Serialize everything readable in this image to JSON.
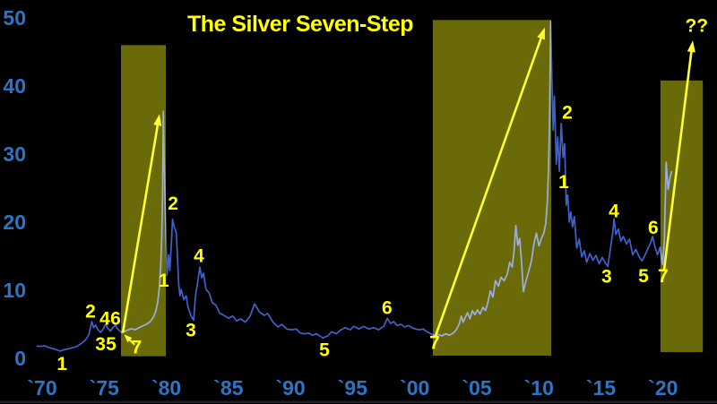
{
  "title": "The Silver Seven-Step",
  "future_label": "??",
  "colors": {
    "background": "#000000",
    "title": "#ffff00",
    "annotation": "#ffff00",
    "arrow": "#ffff2e",
    "axis_labels": "#2d74c4",
    "line": "#4260cc",
    "line_in_highlight": "#9fb0d2",
    "highlight": "#6a6a08",
    "bottom_border": "#20202a"
  },
  "chart_data": {
    "type": "line",
    "title": "The Silver Seven-Step",
    "xlabel": "",
    "ylabel": "",
    "grid": false,
    "legend": "none",
    "x_axis": {
      "range_years": [
        1969.3,
        2024.3
      ],
      "ticks": [
        {
          "label": "`70",
          "year": 1970
        },
        {
          "label": "`75",
          "year": 1975
        },
        {
          "label": "`80",
          "year": 1980
        },
        {
          "label": "`85",
          "year": 1985
        },
        {
          "label": "`90",
          "year": 1990
        },
        {
          "label": "`95",
          "year": 1995
        },
        {
          "label": "`00",
          "year": 2000
        },
        {
          "label": "`05",
          "year": 2005
        },
        {
          "label": "`10",
          "year": 2010
        },
        {
          "label": "`15",
          "year": 2015
        },
        {
          "label": "`20",
          "year": 2020
        }
      ]
    },
    "y_axis": {
      "range": [
        0,
        50
      ],
      "ticks": [
        {
          "label": "50",
          "value": 50
        },
        {
          "label": "40",
          "value": 40
        },
        {
          "label": "30",
          "value": 30
        },
        {
          "label": "20",
          "value": 20
        },
        {
          "label": "10",
          "value": 10
        },
        {
          "label": "0",
          "value": 0
        }
      ]
    },
    "series": [
      {
        "name": "silver-price-usd-per-oz",
        "points": [
          [
            1969.55,
            1.8
          ],
          [
            1969.9,
            1.75
          ],
          [
            1970.2,
            1.85
          ],
          [
            1970.5,
            1.6
          ],
          [
            1970.8,
            1.45
          ],
          [
            1971.1,
            1.3
          ],
          [
            1971.45,
            1.05
          ],
          [
            1971.75,
            1.25
          ],
          [
            1972.1,
            1.4
          ],
          [
            1972.45,
            1.55
          ],
          [
            1972.8,
            1.75
          ],
          [
            1973.1,
            2.1
          ],
          [
            1973.45,
            2.6
          ],
          [
            1973.75,
            3.4
          ],
          [
            1974.0,
            5.4
          ],
          [
            1974.15,
            4.5
          ],
          [
            1974.3,
            4.9
          ],
          [
            1974.5,
            4.2
          ],
          [
            1974.7,
            3.8
          ],
          [
            1974.95,
            4.4
          ],
          [
            1975.1,
            5.0
          ],
          [
            1975.3,
            4.4
          ],
          [
            1975.5,
            4.0
          ],
          [
            1975.7,
            4.5
          ],
          [
            1975.9,
            4.9
          ],
          [
            1976.05,
            4.4
          ],
          [
            1976.2,
            4.1
          ],
          [
            1976.45,
            3.75
          ],
          [
            1976.7,
            4.0
          ],
          [
            1976.95,
            4.2
          ],
          [
            1977.2,
            4.35
          ],
          [
            1977.5,
            4.2
          ],
          [
            1977.8,
            4.5
          ],
          [
            1978.1,
            4.75
          ],
          [
            1978.4,
            5.0
          ],
          [
            1978.7,
            5.4
          ],
          [
            1978.95,
            6.0
          ],
          [
            1979.15,
            6.9
          ],
          [
            1979.3,
            8.2
          ],
          [
            1979.45,
            10.5
          ],
          [
            1979.55,
            13.5
          ],
          [
            1979.63,
            17.5
          ],
          [
            1979.7,
            24
          ],
          [
            1979.76,
            36.3
          ],
          [
            1979.83,
            29
          ],
          [
            1979.9,
            23
          ],
          [
            1979.97,
            17.5
          ],
          [
            1980.05,
            12.2
          ],
          [
            1980.18,
            15.2
          ],
          [
            1980.28,
            12.9
          ],
          [
            1980.4,
            16.5
          ],
          [
            1980.5,
            20.4
          ],
          [
            1980.65,
            19.2
          ],
          [
            1980.8,
            18.4
          ],
          [
            1980.9,
            14.9
          ],
          [
            1981.0,
            10.9
          ],
          [
            1981.1,
            9.2
          ],
          [
            1981.2,
            10.1
          ],
          [
            1981.4,
            8.6
          ],
          [
            1981.6,
            9.2
          ],
          [
            1981.75,
            7.5
          ],
          [
            1982.0,
            6.2
          ],
          [
            1982.2,
            5.6
          ],
          [
            1982.35,
            9.2
          ],
          [
            1982.5,
            10.9
          ],
          [
            1982.7,
            13.4
          ],
          [
            1982.85,
            11.8
          ],
          [
            1983.0,
            12.5
          ],
          [
            1983.2,
            10.1
          ],
          [
            1983.45,
            9.6
          ],
          [
            1983.7,
            8.2
          ],
          [
            1984.0,
            7.8
          ],
          [
            1984.3,
            6.6
          ],
          [
            1984.65,
            6.3
          ],
          [
            1985.0,
            5.9
          ],
          [
            1985.35,
            6.2
          ],
          [
            1985.65,
            5.5
          ],
          [
            1986.0,
            5.8
          ],
          [
            1986.35,
            5.3
          ],
          [
            1986.75,
            6.2
          ],
          [
            1987.1,
            8.0
          ],
          [
            1987.5,
            6.8
          ],
          [
            1987.9,
            6.3
          ],
          [
            1988.15,
            6.6
          ],
          [
            1988.6,
            5.3
          ],
          [
            1989.0,
            4.6
          ],
          [
            1989.3,
            5.0
          ],
          [
            1989.7,
            4.3
          ],
          [
            1990.1,
            4.2
          ],
          [
            1990.45,
            4.3
          ],
          [
            1990.8,
            3.7
          ],
          [
            1991.1,
            3.6
          ],
          [
            1991.45,
            3.7
          ],
          [
            1991.8,
            3.4
          ],
          [
            1992.1,
            3.6
          ],
          [
            1992.6,
            3.0
          ],
          [
            1993.0,
            3.3
          ],
          [
            1993.3,
            3.9
          ],
          [
            1993.7,
            3.6
          ],
          [
            1994.0,
            4.1
          ],
          [
            1994.4,
            4.5
          ],
          [
            1994.8,
            4.2
          ],
          [
            1995.1,
            4.7
          ],
          [
            1995.5,
            4.3
          ],
          [
            1995.9,
            4.7
          ],
          [
            1996.3,
            4.3
          ],
          [
            1996.7,
            4.5
          ],
          [
            1997.1,
            4.2
          ],
          [
            1997.5,
            4.7
          ],
          [
            1997.8,
            5.9
          ],
          [
            1998.05,
            5.1
          ],
          [
            1998.3,
            5.4
          ],
          [
            1998.6,
            4.8
          ],
          [
            1998.9,
            5.0
          ],
          [
            1999.2,
            4.6
          ],
          [
            1999.5,
            4.8
          ],
          [
            1999.9,
            4.4
          ],
          [
            2000.3,
            4.2
          ],
          [
            2000.7,
            4.3
          ],
          [
            2001.0,
            3.9
          ],
          [
            2001.3,
            3.6
          ],
          [
            2001.6,
            3.3
          ],
          [
            2001.9,
            3.5
          ],
          [
            2002.2,
            3.3
          ],
          [
            2002.5,
            3.6
          ],
          [
            2002.8,
            3.4
          ],
          [
            2003.1,
            3.7
          ],
          [
            2003.35,
            4.2
          ],
          [
            2003.6,
            5.1
          ],
          [
            2003.75,
            6.2
          ],
          [
            2003.9,
            5.3
          ],
          [
            2004.1,
            6.1
          ],
          [
            2004.25,
            6.7
          ],
          [
            2004.45,
            5.8
          ],
          [
            2004.65,
            7.0
          ],
          [
            2004.85,
            6.4
          ],
          [
            2005.05,
            7.1
          ],
          [
            2005.25,
            6.5
          ],
          [
            2005.5,
            7.5
          ],
          [
            2005.7,
            7.0
          ],
          [
            2005.9,
            8.3
          ],
          [
            2006.1,
            9.9
          ],
          [
            2006.3,
            9.0
          ],
          [
            2006.5,
            11.4
          ],
          [
            2006.75,
            10.6
          ],
          [
            2006.95,
            11.9
          ],
          [
            2007.2,
            11.4
          ],
          [
            2007.45,
            12.3
          ],
          [
            2007.65,
            14.1
          ],
          [
            2007.85,
            13.4
          ],
          [
            2008.0,
            15.8
          ],
          [
            2008.15,
            19.5
          ],
          [
            2008.3,
            16.6
          ],
          [
            2008.45,
            17.6
          ],
          [
            2008.6,
            14.2
          ],
          [
            2008.75,
            9.8
          ],
          [
            2008.95,
            11.3
          ],
          [
            2009.15,
            12.6
          ],
          [
            2009.4,
            14.3
          ],
          [
            2009.6,
            16.8
          ],
          [
            2009.8,
            18.4
          ],
          [
            2010.0,
            16.5
          ],
          [
            2010.2,
            17.6
          ],
          [
            2010.4,
            18.4
          ],
          [
            2010.55,
            19.8
          ],
          [
            2010.68,
            23
          ],
          [
            2010.78,
            28
          ],
          [
            2010.87,
            36
          ],
          [
            2010.95,
            49.5
          ],
          [
            2011.05,
            41
          ],
          [
            2011.15,
            33.5
          ],
          [
            2011.25,
            38.5
          ],
          [
            2011.4,
            28.5
          ],
          [
            2011.52,
            32.5
          ],
          [
            2011.65,
            27.5
          ],
          [
            2011.8,
            34.5
          ],
          [
            2011.95,
            29.5
          ],
          [
            2012.07,
            31.5
          ],
          [
            2012.2,
            22.5
          ],
          [
            2012.32,
            24
          ],
          [
            2012.45,
            20
          ],
          [
            2012.57,
            21.5
          ],
          [
            2012.7,
            19.3
          ],
          [
            2012.85,
            20.8
          ],
          [
            2013.05,
            16.2
          ],
          [
            2013.25,
            17.5
          ],
          [
            2013.45,
            14.9
          ],
          [
            2013.65,
            15.8
          ],
          [
            2013.85,
            14.1
          ],
          [
            2014.1,
            15.4
          ],
          [
            2014.35,
            14.4
          ],
          [
            2014.6,
            15.1
          ],
          [
            2014.85,
            13.9
          ],
          [
            2015.1,
            14.8
          ],
          [
            2015.35,
            14.0
          ],
          [
            2015.55,
            13.5
          ],
          [
            2015.75,
            16.0
          ],
          [
            2015.95,
            18.5
          ],
          [
            2016.05,
            20.5
          ],
          [
            2016.2,
            18.2
          ],
          [
            2016.4,
            19.0
          ],
          [
            2016.6,
            17.2
          ],
          [
            2016.8,
            17.9
          ],
          [
            2017.05,
            16.8
          ],
          [
            2017.3,
            17.5
          ],
          [
            2017.55,
            15.2
          ],
          [
            2017.8,
            16.0
          ],
          [
            2018.05,
            15.0
          ],
          [
            2018.3,
            14.3
          ],
          [
            2018.55,
            15.2
          ],
          [
            2018.8,
            16.2
          ],
          [
            2019.0,
            17.0
          ],
          [
            2019.15,
            17.9
          ],
          [
            2019.35,
            16.4
          ],
          [
            2019.55,
            15.2
          ],
          [
            2019.75,
            16.3
          ],
          [
            2019.95,
            13.8
          ],
          [
            2020.1,
            17.0
          ],
          [
            2020.25,
            28.8
          ],
          [
            2020.4,
            24.8
          ],
          [
            2020.55,
            26.5
          ],
          [
            2020.7,
            27.5
          ]
        ]
      }
    ],
    "highlight_regions": [
      {
        "name": "bull-run-1976-1980",
        "from_year": 1976.35,
        "to_year": 1979.96,
        "top_value": 46.0,
        "bottom_value": 0.3
      },
      {
        "name": "bull-run-2001-2011",
        "from_year": 2001.46,
        "to_year": 2010.99,
        "top_value": 49.7,
        "bottom_value": 0.4
      },
      {
        "name": "bull-run-2019-onward",
        "from_year": 2019.79,
        "to_year": 2023.2,
        "top_value": 40.8,
        "bottom_value": 0.9
      }
    ],
    "step_annotations": [
      {
        "label": "1",
        "year": 1971.6,
        "value": -0.7
      },
      {
        "label": "2",
        "year": 1973.9,
        "value": 7.0
      },
      {
        "label": "3",
        "year": 1974.7,
        "value": 2.2
      },
      {
        "label": "4",
        "year": 1975.05,
        "value": 5.9
      },
      {
        "label": "5",
        "year": 1975.56,
        "value": 2.2
      },
      {
        "label": "6",
        "year": 1975.92,
        "value": 5.9
      },
      {
        "label": "7",
        "year": 1977.6,
        "value": 1.7
      },
      {
        "label": "1",
        "year": 1979.8,
        "value": 11.5
      },
      {
        "label": "2",
        "year": 1980.54,
        "value": 22.8
      },
      {
        "label": "3",
        "year": 1981.98,
        "value": 4.2
      },
      {
        "label": "4",
        "year": 1982.63,
        "value": 15.1
      },
      {
        "label": "5",
        "year": 1992.73,
        "value": 1.3
      },
      {
        "label": "6",
        "year": 1997.78,
        "value": 7.5
      },
      {
        "label": "7",
        "year": 2001.61,
        "value": 2.4
      },
      {
        "label": "1",
        "year": 2012.0,
        "value": 26.0
      },
      {
        "label": "2",
        "year": 2012.29,
        "value": 36.2
      },
      {
        "label": "3",
        "year": 2015.46,
        "value": 12.1
      },
      {
        "label": "4",
        "year": 2016.04,
        "value": 21.7
      },
      {
        "label": "5",
        "year": 2018.42,
        "value": 12.2
      },
      {
        "label": "6",
        "year": 2019.21,
        "value": 19.3
      },
      {
        "label": "7",
        "year": 2020.0,
        "value": 12.2
      }
    ],
    "arrows": [
      {
        "name": "advance-arrow-1976-1980",
        "from": [
          1976.5,
          3.8
        ],
        "to": [
          1979.45,
          35.9
        ],
        "width": 2.6
      },
      {
        "name": "advance-arrow-2001-2011",
        "from": [
          2001.68,
          3.3
        ],
        "to": [
          2010.48,
          48.6
        ],
        "width": 2.6
      },
      {
        "name": "advance-arrow-2020-future",
        "from": [
          2020.07,
          12.8
        ],
        "to": [
          2022.39,
          46.7
        ],
        "width": 2.6
      },
      {
        "name": "step7-pointer-arrow",
        "from": [
          1977.45,
          2.0
        ],
        "to": [
          1976.6,
          3.5
        ],
        "width": 2.0
      }
    ],
    "future_marker": {
      "label": "??",
      "year": 2022.7,
      "value": 49.0
    }
  }
}
